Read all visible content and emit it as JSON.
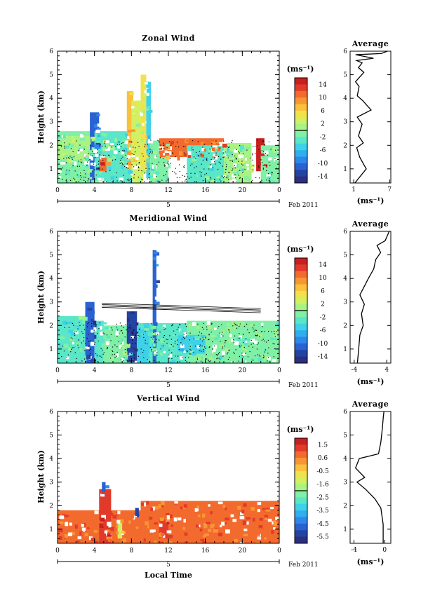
{
  "panels": [
    {
      "title": "Zonal Wind",
      "ylabel": "Height (km)",
      "y_ticks": [
        "1",
        "2",
        "3",
        "4",
        "5",
        "6"
      ],
      "x_ticks": [
        "0",
        "4",
        "8",
        "12",
        "16",
        "20",
        "0"
      ],
      "date_label": "5",
      "date_suffix": "Feb 2011",
      "colorbar_unit": "(ms⁻¹)",
      "colorbar_ticks": [
        "14",
        "10",
        "6",
        "2",
        "-2",
        "-6",
        "-10",
        "-14"
      ],
      "avg_title": "Average",
      "avg_x_ticks": [
        "1",
        "7"
      ],
      "avg_xlabel": "(ms⁻¹)"
    },
    {
      "title": "Meridional Wind",
      "ylabel": "Height (km)",
      "y_ticks": [
        "1",
        "2",
        "3",
        "4",
        "5",
        "6"
      ],
      "x_ticks": [
        "0",
        "4",
        "8",
        "12",
        "16",
        "20",
        "0"
      ],
      "date_label": "5",
      "date_suffix": "Feb 2011",
      "colorbar_unit": "(ms⁻¹)",
      "colorbar_ticks": [
        "14",
        "10",
        "6",
        "2",
        "-2",
        "-6",
        "-10",
        "-14"
      ],
      "avg_title": "Average",
      "avg_x_ticks": [
        "-4",
        "4"
      ],
      "avg_xlabel": "(ms⁻¹)"
    },
    {
      "title": "Vertical Wind",
      "ylabel": "Height (km)",
      "y_ticks": [
        "1",
        "2",
        "3",
        "4",
        "5",
        "6"
      ],
      "x_ticks": [
        "0",
        "4",
        "8",
        "12",
        "16",
        "20",
        "0"
      ],
      "date_label": "5",
      "date_suffix": "Feb 2011",
      "xlabel": "Local Time",
      "colorbar_unit": "(ms⁻¹)",
      "colorbar_ticks": [
        "1.5",
        "0.6",
        "-0.5",
        "-1.6",
        "-2.5",
        "-3.5",
        "-4.5",
        "-5.5"
      ],
      "avg_title": "Average",
      "avg_x_ticks": [
        "-4",
        "0"
      ],
      "avg_xlabel": "(ms⁻¹)"
    }
  ],
  "colors": {
    "colormap": [
      "#2b2f7e",
      "#2344a3",
      "#2a62d2",
      "#2f87ee",
      "#2fb0ee",
      "#3ed2e8",
      "#5ae6c8",
      "#7ff0a6",
      "#a9f284",
      "#d2f063",
      "#f2e24a",
      "#fbc03c",
      "#f99634",
      "#f26a2e",
      "#e23a2a",
      "#c8201f"
    ]
  },
  "chart_data": [
    {
      "type": "heatmap",
      "title": "Zonal Wind",
      "ylabel": "Height (km)",
      "xlim": [
        0,
        24
      ],
      "ylim": [
        0.4,
        6
      ],
      "zlim": [
        -14,
        14
      ],
      "cells": [
        [
          0,
          0.4,
          4,
          2.6,
          -1
        ],
        [
          0,
          1.4,
          6,
          2.4,
          1
        ],
        [
          3.5,
          0.4,
          4.5,
          3.4,
          -9
        ],
        [
          4,
          0.4,
          8,
          2.6,
          -2
        ],
        [
          7.5,
          1,
          8.2,
          4.3,
          6
        ],
        [
          8,
          0.4,
          9.3,
          3.9,
          2
        ],
        [
          9,
          0.8,
          9.6,
          5.0,
          4
        ],
        [
          9.6,
          0.6,
          10.1,
          4.7,
          -4
        ],
        [
          10,
          0.4,
          12,
          2.2,
          -1
        ],
        [
          11,
          1.5,
          18,
          2.3,
          9
        ],
        [
          14,
          0.4,
          20,
          2.0,
          -2
        ],
        [
          18,
          0.4,
          21,
          2.1,
          0
        ],
        [
          21.5,
          0.9,
          22.4,
          2.3,
          13
        ],
        [
          22,
          0.4,
          24,
          2.0,
          -1
        ],
        [
          4.5,
          0.9,
          5.3,
          1.6,
          10
        ]
      ],
      "profile": {
        "x": [
          1.2,
          3.1,
          2.0,
          1.5,
          2.6,
          1.8,
          2.4,
          1.6,
          3.9,
          2.5,
          1.6,
          1.9,
          1.3,
          2.7,
          1.8,
          2.4,
          1.5,
          4.3,
          1.3,
          5.6,
          6.6
        ],
        "y": [
          0.4,
          1.0,
          1.5,
          1.9,
          2.1,
          2.4,
          2.9,
          3.2,
          3.5,
          3.9,
          4.1,
          4.5,
          4.7,
          5.1,
          5.3,
          5.5,
          5.6,
          5.7,
          5.85,
          5.9,
          6.0
        ]
      }
    },
    {
      "type": "heatmap",
      "title": "Meridional Wind",
      "ylabel": "Height (km)",
      "xlim": [
        0,
        24
      ],
      "ylim": [
        0.4,
        6
      ],
      "zlim": [
        -14,
        14
      ],
      "cells": [
        [
          0,
          0.4,
          3,
          2.4,
          -2
        ],
        [
          3,
          0.4,
          4,
          3.0,
          -10
        ],
        [
          4,
          0.4,
          5,
          2.2,
          -3
        ],
        [
          5,
          0.4,
          8,
          2.0,
          -1
        ],
        [
          7.5,
          0.5,
          8.6,
          2.6,
          -12
        ],
        [
          8.6,
          0.4,
          10,
          2.1,
          -4
        ],
        [
          10,
          0.4,
          14,
          2.1,
          -2
        ],
        [
          14,
          0.4,
          24,
          2.2,
          -1
        ],
        [
          10.3,
          0.4,
          10.7,
          5.2,
          -9
        ],
        [
          13,
          0.8,
          16,
          1.6,
          -4
        ]
      ],
      "profile": {
        "x": [
          -3.2,
          -2.9,
          -2.6,
          -1.8,
          -2.2,
          -1.5,
          -2.6,
          -1.4,
          -0.5,
          0.8,
          1.3,
          2.5,
          1.6,
          3.6,
          4.6
        ],
        "y": [
          0.4,
          1.0,
          1.6,
          2.0,
          2.5,
          2.9,
          3.3,
          3.7,
          4.0,
          4.4,
          4.8,
          5.1,
          5.4,
          5.6,
          6.0
        ]
      }
    },
    {
      "type": "heatmap",
      "title": "Vertical Wind",
      "ylabel": "Height (km)",
      "xlim": [
        0,
        24
      ],
      "ylim": [
        0.4,
        6
      ],
      "zlim": [
        -5.5,
        1.5
      ],
      "cells": [
        [
          0,
          0.4,
          9,
          1.8,
          0.4
        ],
        [
          4.5,
          0.4,
          5.8,
          2.7,
          1.0
        ],
        [
          9,
          0.4,
          24,
          2.2,
          0.4
        ],
        [
          6.5,
          0.6,
          7,
          1.4,
          -1.2
        ],
        [
          11,
          0.6,
          12,
          1.4,
          0.9
        ],
        [
          4.8,
          2.4,
          5.2,
          3.0,
          -4.5
        ],
        [
          8.4,
          1.5,
          8.8,
          1.9,
          -5
        ]
      ],
      "profile": {
        "x": [
          -0.2,
          -0.2,
          -0.5,
          -1.3,
          -2.5,
          -3.6,
          -2.6,
          -3.8,
          -3.3,
          -0.8,
          -0.5,
          -0.3,
          -0.2,
          -0.1
        ],
        "y": [
          0.4,
          1.2,
          1.9,
          2.3,
          2.7,
          3.0,
          3.2,
          3.6,
          4.0,
          4.2,
          4.7,
          5.3,
          5.7,
          6.0
        ]
      }
    }
  ]
}
